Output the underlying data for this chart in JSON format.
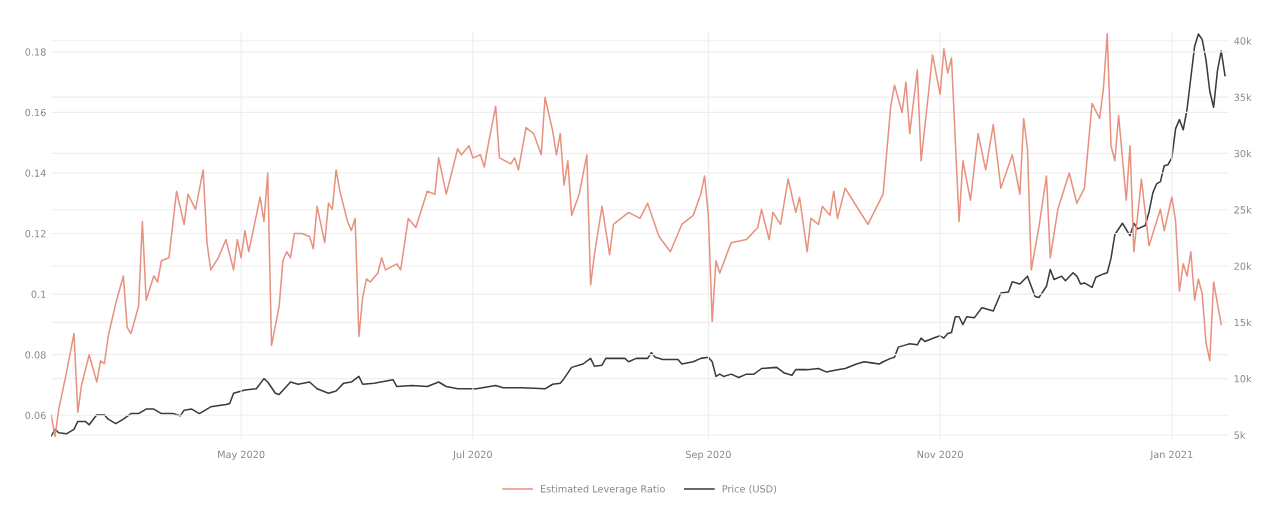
{
  "chart_data": {
    "type": "line",
    "xlim": [
      "2020-03-12",
      "2021-01-16"
    ],
    "xticks": [
      {
        "value": "2020-05-01",
        "label": "May 2020"
      },
      {
        "value": "2020-07-01",
        "label": "Jul 2020"
      },
      {
        "value": "2020-09-01",
        "label": "Sep 2020"
      },
      {
        "value": "2020-11-01",
        "label": "Nov 2020"
      },
      {
        "value": "2021-01-01",
        "label": "Jan 2021"
      }
    ],
    "ylim": [
      0.052,
      0.187
    ],
    "yticks": [
      0.06,
      0.08,
      {
        "value": 0.1,
        "label": "0.1"
      },
      0.12,
      0.14,
      0.16,
      0.18
    ],
    "y2lim": [
      4600,
      40900
    ],
    "y2ticks": [
      {
        "value": 5000,
        "label": "5k"
      },
      {
        "value": 10000,
        "label": "10k"
      },
      {
        "value": 15000,
        "label": "15k"
      },
      {
        "value": 20000,
        "label": "20k"
      },
      {
        "value": 25000,
        "label": "25k"
      },
      {
        "value": 30000,
        "label": "30k"
      },
      {
        "value": 35000,
        "label": "35k"
      },
      {
        "value": 40000,
        "label": "40k"
      }
    ],
    "grid": true,
    "legend": "bottom",
    "series": [
      {
        "name": "Estimated Leverage Ratio",
        "color": "#e8917f",
        "axis": "y",
        "x": [
          "2020-03-12",
          "2020-03-13",
          "2020-03-14",
          "2020-03-16",
          "2020-03-18",
          "2020-03-19",
          "2020-03-20",
          "2020-03-22",
          "2020-03-24",
          "2020-03-25",
          "2020-03-26",
          "2020-03-27",
          "2020-03-29",
          "2020-03-31",
          "2020-04-01",
          "2020-04-02",
          "2020-04-04",
          "2020-04-05",
          "2020-04-06",
          "2020-04-08",
          "2020-04-09",
          "2020-04-10",
          "2020-04-12",
          "2020-04-14",
          "2020-04-16",
          "2020-04-17",
          "2020-04-19",
          "2020-04-21",
          "2020-04-22",
          "2020-04-23",
          "2020-04-25",
          "2020-04-27",
          "2020-04-29",
          "2020-04-30",
          "2020-05-01",
          "2020-05-02",
          "2020-05-03",
          "2020-05-06",
          "2020-05-07",
          "2020-05-08",
          "2020-05-09",
          "2020-05-11",
          "2020-05-12",
          "2020-05-13",
          "2020-05-14",
          "2020-05-15",
          "2020-05-17",
          "2020-05-19",
          "2020-05-20",
          "2020-05-21",
          "2020-05-23",
          "2020-05-24",
          "2020-05-25",
          "2020-05-26",
          "2020-05-27",
          "2020-05-29",
          "2020-05-30",
          "2020-05-31",
          "2020-06-01",
          "2020-06-02",
          "2020-06-03",
          "2020-06-04",
          "2020-06-06",
          "2020-06-07",
          "2020-06-08",
          "2020-06-11",
          "2020-06-12",
          "2020-06-14",
          "2020-06-16",
          "2020-06-19",
          "2020-06-21",
          "2020-06-22",
          "2020-06-24",
          "2020-06-27",
          "2020-06-28",
          "2020-06-30",
          "2020-07-01",
          "2020-07-03",
          "2020-07-04",
          "2020-07-05",
          "2020-07-07",
          "2020-07-08",
          "2020-07-11",
          "2020-07-12",
          "2020-07-13",
          "2020-07-15",
          "2020-07-17",
          "2020-07-19",
          "2020-07-20",
          "2020-07-22",
          "2020-07-23",
          "2020-07-24",
          "2020-07-25",
          "2020-07-26",
          "2020-07-27",
          "2020-07-29",
          "2020-07-31",
          "2020-08-01",
          "2020-08-02",
          "2020-08-04",
          "2020-08-06",
          "2020-08-07",
          "2020-08-11",
          "2020-08-14",
          "2020-08-16",
          "2020-08-19",
          "2020-08-22",
          "2020-08-25",
          "2020-08-28",
          "2020-08-30",
          "2020-08-31",
          "2020-09-01",
          "2020-09-02",
          "2020-09-03",
          "2020-09-04",
          "2020-09-07",
          "2020-09-11",
          "2020-09-14",
          "2020-09-15",
          "2020-09-17",
          "2020-09-18",
          "2020-09-20",
          "2020-09-22",
          "2020-09-24",
          "2020-09-25",
          "2020-09-27",
          "2020-09-28",
          "2020-09-30",
          "2020-10-01",
          "2020-10-03",
          "2020-10-04",
          "2020-10-05",
          "2020-10-07",
          "2020-10-09",
          "2020-10-13",
          "2020-10-17",
          "2020-10-19",
          "2020-10-20",
          "2020-10-22",
          "2020-10-23",
          "2020-10-24",
          "2020-10-26",
          "2020-10-27",
          "2020-10-29",
          "2020-10-30",
          "2020-11-01",
          "2020-11-02",
          "2020-11-03",
          "2020-11-04",
          "2020-11-06",
          "2020-11-07",
          "2020-11-09",
          "2020-11-11",
          "2020-11-13",
          "2020-11-15",
          "2020-11-17",
          "2020-11-20",
          "2020-11-22",
          "2020-11-23",
          "2020-11-24",
          "2020-11-25",
          "2020-11-27",
          "2020-11-29",
          "2020-11-30",
          "2020-12-02",
          "2020-12-05",
          "2020-12-07",
          "2020-12-09",
          "2020-12-11",
          "2020-12-13",
          "2020-12-14",
          "2020-12-15",
          "2020-12-16",
          "2020-12-17",
          "2020-12-18",
          "2020-12-20",
          "2020-12-21",
          "2020-12-22",
          "2020-12-24",
          "2020-12-26",
          "2020-12-29",
          "2020-12-30",
          "2021-01-01",
          "2021-01-02",
          "2021-01-03",
          "2021-01-04",
          "2021-01-05",
          "2021-01-06",
          "2021-01-07",
          "2021-01-08",
          "2021-01-09",
          "2021-01-10",
          "2021-01-11",
          "2021-01-12",
          "2021-01-14"
        ],
        "values": [
          0.06,
          0.053,
          0.062,
          0.074,
          0.087,
          0.061,
          0.07,
          0.08,
          0.071,
          0.078,
          0.077,
          0.086,
          0.097,
          0.106,
          0.089,
          0.087,
          0.096,
          0.124,
          0.098,
          0.106,
          0.104,
          0.111,
          0.112,
          0.134,
          0.123,
          0.133,
          0.128,
          0.141,
          0.117,
          0.108,
          0.112,
          0.118,
          0.108,
          0.118,
          0.112,
          0.121,
          0.114,
          0.132,
          0.124,
          0.14,
          0.083,
          0.096,
          0.111,
          0.114,
          0.112,
          0.12,
          0.12,
          0.119,
          0.115,
          0.129,
          0.117,
          0.13,
          0.128,
          0.141,
          0.134,
          0.124,
          0.121,
          0.125,
          0.086,
          0.099,
          0.105,
          0.104,
          0.107,
          0.112,
          0.108,
          0.11,
          0.108,
          0.125,
          0.122,
          0.134,
          0.133,
          0.145,
          0.133,
          0.148,
          0.146,
          0.149,
          0.145,
          0.146,
          0.142,
          0.149,
          0.162,
          0.145,
          0.143,
          0.145,
          0.141,
          0.155,
          0.153,
          0.146,
          0.165,
          0.154,
          0.146,
          0.153,
          0.136,
          0.144,
          0.126,
          0.133,
          0.146,
          0.103,
          0.113,
          0.129,
          0.113,
          0.123,
          0.127,
          0.125,
          0.13,
          0.119,
          0.114,
          0.123,
          0.126,
          0.133,
          0.139,
          0.126,
          0.091,
          0.111,
          0.107,
          0.117,
          0.118,
          0.122,
          0.128,
          0.118,
          0.127,
          0.123,
          0.138,
          0.127,
          0.132,
          0.114,
          0.125,
          0.123,
          0.129,
          0.126,
          0.134,
          0.125,
          0.135,
          0.131,
          0.123,
          0.133,
          0.162,
          0.169,
          0.16,
          0.17,
          0.153,
          0.174,
          0.144,
          0.167,
          0.179,
          0.166,
          0.181,
          0.173,
          0.178,
          0.124,
          0.144,
          0.131,
          0.153,
          0.141,
          0.156,
          0.135,
          0.146,
          0.133,
          0.158,
          0.148,
          0.108,
          0.122,
          0.139,
          0.112,
          0.128,
          0.14,
          0.13,
          0.135,
          0.163,
          0.158,
          0.168,
          0.186,
          0.149,
          0.144,
          0.159,
          0.131,
          0.149,
          0.114,
          0.138,
          0.116,
          0.128,
          0.121,
          0.132,
          0.124,
          0.101,
          0.11,
          0.106,
          0.114,
          0.098,
          0.105,
          0.1,
          0.084,
          0.078,
          0.104,
          0.09
        ]
      },
      {
        "name": "Price (USD)",
        "color": "#3a3a3a",
        "axis": "y2",
        "x": [
          "2020-03-12",
          "2020-03-13",
          "2020-03-14",
          "2020-03-16",
          "2020-03-18",
          "2020-03-19",
          "2020-03-21",
          "2020-03-22",
          "2020-03-24",
          "2020-03-26",
          "2020-03-27",
          "2020-03-29",
          "2020-03-31",
          "2020-04-02",
          "2020-04-04",
          "2020-04-06",
          "2020-04-08",
          "2020-04-10",
          "2020-04-13",
          "2020-04-15",
          "2020-04-16",
          "2020-04-18",
          "2020-04-20",
          "2020-04-23",
          "2020-04-27",
          "2020-04-28",
          "2020-04-29",
          "2020-05-02",
          "2020-05-05",
          "2020-05-07",
          "2020-05-08",
          "2020-05-10",
          "2020-05-11",
          "2020-05-14",
          "2020-05-16",
          "2020-05-19",
          "2020-05-21",
          "2020-05-24",
          "2020-05-26",
          "2020-05-28",
          "2020-05-30",
          "2020-06-01",
          "2020-06-02",
          "2020-06-05",
          "2020-06-10",
          "2020-06-11",
          "2020-06-15",
          "2020-06-19",
          "2020-06-22",
          "2020-06-24",
          "2020-06-27",
          "2020-07-02",
          "2020-07-07",
          "2020-07-09",
          "2020-07-14",
          "2020-07-20",
          "2020-07-22",
          "2020-07-24",
          "2020-07-25",
          "2020-07-27",
          "2020-07-30",
          "2020-08-01",
          "2020-08-02",
          "2020-08-04",
          "2020-08-05",
          "2020-08-07",
          "2020-08-09",
          "2020-08-10",
          "2020-08-11",
          "2020-08-13",
          "2020-08-16",
          "2020-08-17",
          "2020-08-18",
          "2020-08-20",
          "2020-08-24",
          "2020-08-25",
          "2020-08-28",
          "2020-08-30",
          "2020-09-01",
          "2020-09-02",
          "2020-09-03",
          "2020-09-04",
          "2020-09-05",
          "2020-09-07",
          "2020-09-09",
          "2020-09-11",
          "2020-09-13",
          "2020-09-15",
          "2020-09-19",
          "2020-09-21",
          "2020-09-23",
          "2020-09-24",
          "2020-09-27",
          "2020-09-30",
          "2020-10-02",
          "2020-10-05",
          "2020-10-07",
          "2020-10-10",
          "2020-10-12",
          "2020-10-14",
          "2020-10-16",
          "2020-10-17",
          "2020-10-19",
          "2020-10-20",
          "2020-10-21",
          "2020-10-23",
          "2020-10-24",
          "2020-10-26",
          "2020-10-27",
          "2020-10-28",
          "2020-10-31",
          "2020-11-01",
          "2020-11-02",
          "2020-11-03",
          "2020-11-04",
          "2020-11-05",
          "2020-11-06",
          "2020-11-07",
          "2020-11-08",
          "2020-11-10",
          "2020-11-12",
          "2020-11-13",
          "2020-11-15",
          "2020-11-17",
          "2020-11-19",
          "2020-11-20",
          "2020-11-22",
          "2020-11-24",
          "2020-11-26",
          "2020-11-27",
          "2020-11-29",
          "2020-11-30",
          "2020-12-01",
          "2020-12-03",
          "2020-12-04",
          "2020-12-06",
          "2020-12-07",
          "2020-12-08",
          "2020-12-09",
          "2020-12-11",
          "2020-12-12",
          "2020-12-14",
          "2020-12-15",
          "2020-12-16",
          "2020-12-17",
          "2020-12-19",
          "2020-12-21",
          "2020-12-22",
          "2020-12-23",
          "2020-12-25",
          "2020-12-26",
          "2020-12-27",
          "2020-12-28",
          "2020-12-29",
          "2020-12-30",
          "2020-12-31",
          "2021-01-01",
          "2021-01-02",
          "2021-01-03",
          "2021-01-04",
          "2021-01-05",
          "2021-01-07",
          "2021-01-08",
          "2021-01-09",
          "2021-01-10",
          "2021-01-11",
          "2021-01-12",
          "2021-01-13",
          "2021-01-14",
          "2021-01-15"
        ],
        "values": [
          4900,
          5500,
          5200,
          5100,
          5500,
          6200,
          6200,
          5900,
          6800,
          6800,
          6400,
          6000,
          6400,
          6900,
          6900,
          7300,
          7300,
          6900,
          6900,
          6700,
          7200,
          7300,
          6900,
          7500,
          7700,
          7800,
          8700,
          9000,
          9100,
          10000,
          9700,
          8700,
          8600,
          9700,
          9500,
          9700,
          9100,
          8700,
          8900,
          9600,
          9700,
          10200,
          9500,
          9600,
          9900,
          9300,
          9400,
          9300,
          9700,
          9300,
          9100,
          9100,
          9400,
          9200,
          9200,
          9100,
          9500,
          9600,
          10000,
          11000,
          11300,
          11800,
          11100,
          11200,
          11800,
          11800,
          11800,
          11800,
          11500,
          11800,
          11800,
          12300,
          11900,
          11700,
          11700,
          11300,
          11500,
          11800,
          11900,
          11500,
          10200,
          10400,
          10200,
          10400,
          10100,
          10400,
          10400,
          10900,
          11000,
          10500,
          10300,
          10800,
          10800,
          10900,
          10600,
          10800,
          10900,
          11300,
          11500,
          11400,
          11300,
          11500,
          11800,
          11900,
          12800,
          13000,
          13100,
          13000,
          13600,
          13300,
          13700,
          13800,
          13600,
          14000,
          14100,
          15500,
          15500,
          14800,
          15500,
          15400,
          16300,
          16200,
          16000,
          17600,
          17700,
          18600,
          18400,
          19100,
          17300,
          17200,
          18200,
          19700,
          18800,
          19100,
          18700,
          19400,
          19100,
          18400,
          18500,
          18100,
          19000,
          19300,
          19400,
          20700,
          22800,
          23800,
          22700,
          23800,
          23300,
          23600,
          24800,
          26500,
          27300,
          27500,
          28900,
          29000,
          29600,
          32200,
          33000,
          32100,
          33900,
          39500,
          40600,
          40100,
          38300,
          35500,
          34100,
          37300,
          39100,
          36900
        ]
      }
    ]
  }
}
